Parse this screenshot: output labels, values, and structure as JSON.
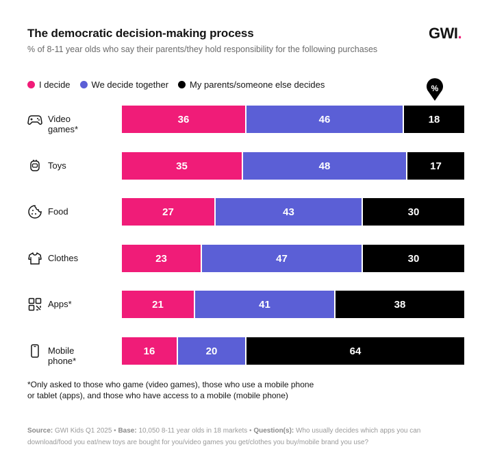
{
  "header": {
    "title": "The democratic decision-making process",
    "subtitle": "% of 8-11 year olds who say their parents/they hold responsibility for the following purchases",
    "logo_text": "GWI",
    "logo_dot": ".",
    "percent_badge": "%"
  },
  "colors": {
    "i_decide": "#f01c78",
    "together": "#5b5fd6",
    "parents": "#000000"
  },
  "chart_data": {
    "type": "bar",
    "orientation": "horizontal",
    "stacked": true,
    "title": "The democratic decision-making process",
    "subtitle": "% of 8-11 year olds who say their parents/they hold responsibility for the following purchases",
    "unit": "%",
    "categories": [
      "Video games*",
      "Toys",
      "Food",
      "Clothes",
      "Apps*",
      "Mobile phone*"
    ],
    "icons": [
      "gamepad-icon",
      "toy-icon",
      "cookie-icon",
      "tshirt-icon",
      "apps-icon",
      "phone-icon"
    ],
    "series": [
      {
        "name": "I decide",
        "color": "#f01c78",
        "values": [
          36,
          35,
          27,
          23,
          21,
          16
        ]
      },
      {
        "name": "We decide together",
        "color": "#5b5fd6",
        "values": [
          46,
          48,
          43,
          47,
          41,
          20
        ]
      },
      {
        "name": "My parents/someone else decides",
        "color": "#000000",
        "values": [
          18,
          17,
          30,
          30,
          38,
          64
        ]
      }
    ],
    "legend_position": "top-left"
  },
  "footnote": {
    "line1": "*Only asked to those who game (video games), those who use a mobile phone",
    "line2": "or tablet (apps), and those who have access to a mobile (mobile phone)"
  },
  "source": {
    "source_label": "Source:",
    "source_text": "GWI Kids Q1 2025 •",
    "base_label": "Base:",
    "base_text": "10,050 8-11 year olds in 18 markets •",
    "question_label": "Question(s):",
    "question_text": "Who usually decides which apps you can download/food you eat/new toys are bought for you/video games you get/clothes you buy/mobile brand you use?"
  }
}
